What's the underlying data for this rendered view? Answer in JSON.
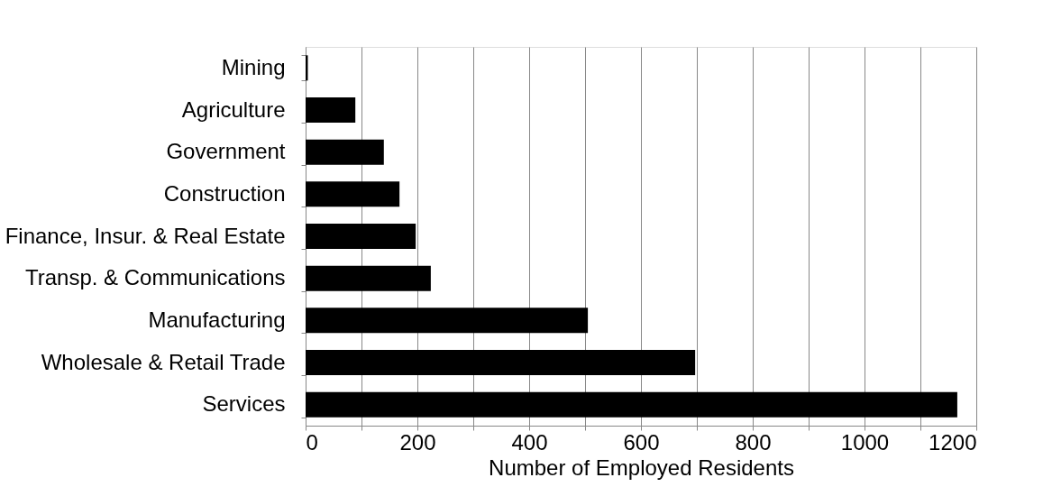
{
  "chart_data": {
    "type": "bar",
    "orientation": "horizontal",
    "xlabel": "Number of Employed Residents",
    "categories": [
      "Mining",
      "Agriculture",
      "Government",
      "Construction",
      "Finance, Insur. & Real Estate",
      "Transp. & Communications",
      "Manufacturing",
      "Wholesale & Retail Trade",
      "Services"
    ],
    "values": [
      4,
      89,
      140,
      168,
      197,
      224,
      505,
      697,
      1166
    ],
    "color": "#000000",
    "xlim": [
      0,
      1200
    ],
    "xticks": [
      0,
      {
        "value": 100,
        "label": null
      },
      200,
      {
        "value": 300,
        "label": null
      },
      400,
      {
        "value": 500,
        "label": null
      },
      600,
      {
        "value": 700,
        "label": null
      },
      800,
      {
        "value": 900,
        "label": null
      },
      1000,
      {
        "value": 1100,
        "label": null
      },
      1200
    ],
    "grid": "x"
  }
}
